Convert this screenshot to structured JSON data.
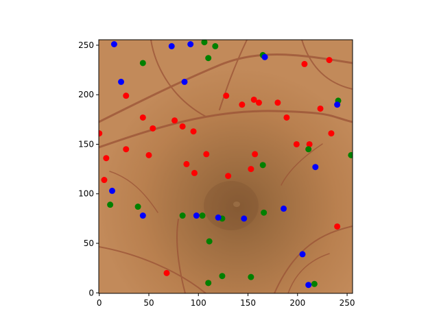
{
  "chart_data": {
    "type": "scatter",
    "background": "fundus-image",
    "grid": false,
    "x_ticks": [
      0,
      50,
      100,
      150,
      200,
      250
    ],
    "y_ticks": [
      0,
      50,
      100,
      150,
      200,
      250
    ],
    "xlim": [
      -0.5,
      255.5
    ],
    "ylim": [
      255.5,
      -0.5
    ],
    "y_inverted": true,
    "colors": {
      "red": "#ff0000",
      "green": "#008000",
      "blue": "#0000ff"
    },
    "series": [
      {
        "color": "red",
        "points": [
          [
            110,
            10
          ],
          [
            68,
            20
          ],
          [
            240,
            67
          ],
          [
            5,
            114
          ],
          [
            7,
            136
          ],
          [
            27,
            145
          ],
          [
            50,
            139
          ],
          [
            88,
            130
          ],
          [
            96,
            121
          ],
          [
            130,
            118
          ],
          [
            153,
            125
          ],
          [
            157,
            140
          ],
          [
            108,
            140
          ],
          [
            199,
            150
          ],
          [
            212,
            150
          ],
          [
            0,
            161
          ],
          [
            54,
            166
          ],
          [
            95,
            163
          ],
          [
            84,
            168
          ],
          [
            76,
            174
          ],
          [
            44,
            177
          ],
          [
            234,
            161
          ],
          [
            189,
            177
          ],
          [
            223,
            186
          ],
          [
            144,
            190
          ],
          [
            161,
            192
          ],
          [
            156,
            195
          ],
          [
            180,
            192
          ],
          [
            128,
            199
          ],
          [
            27,
            199
          ],
          [
            207,
            231
          ],
          [
            232,
            235
          ]
        ]
      },
      {
        "color": "green",
        "points": [
          [
            110,
            10
          ],
          [
            217,
            9
          ],
          [
            124,
            17
          ],
          [
            153,
            16
          ],
          [
            111,
            52
          ],
          [
            84,
            78
          ],
          [
            104,
            78
          ],
          [
            124,
            75
          ],
          [
            166,
            81
          ],
          [
            39,
            87
          ],
          [
            11,
            89
          ],
          [
            165,
            129
          ],
          [
            211,
            145
          ],
          [
            254,
            139
          ],
          [
            241,
            194
          ],
          [
            44,
            232
          ],
          [
            110,
            237
          ],
          [
            117,
            249
          ],
          [
            106,
            253
          ],
          [
            165,
            240
          ]
        ]
      },
      {
        "color": "blue",
        "points": [
          [
            211,
            8
          ],
          [
            205,
            39
          ],
          [
            44,
            78
          ],
          [
            98,
            78
          ],
          [
            120,
            76
          ],
          [
            146,
            75
          ],
          [
            186,
            85
          ],
          [
            13,
            103
          ],
          [
            218,
            127
          ],
          [
            240,
            190
          ],
          [
            22,
            213
          ],
          [
            86,
            213
          ],
          [
            167,
            238
          ],
          [
            73,
            249
          ],
          [
            92,
            251
          ],
          [
            15,
            251
          ]
        ]
      }
    ]
  }
}
